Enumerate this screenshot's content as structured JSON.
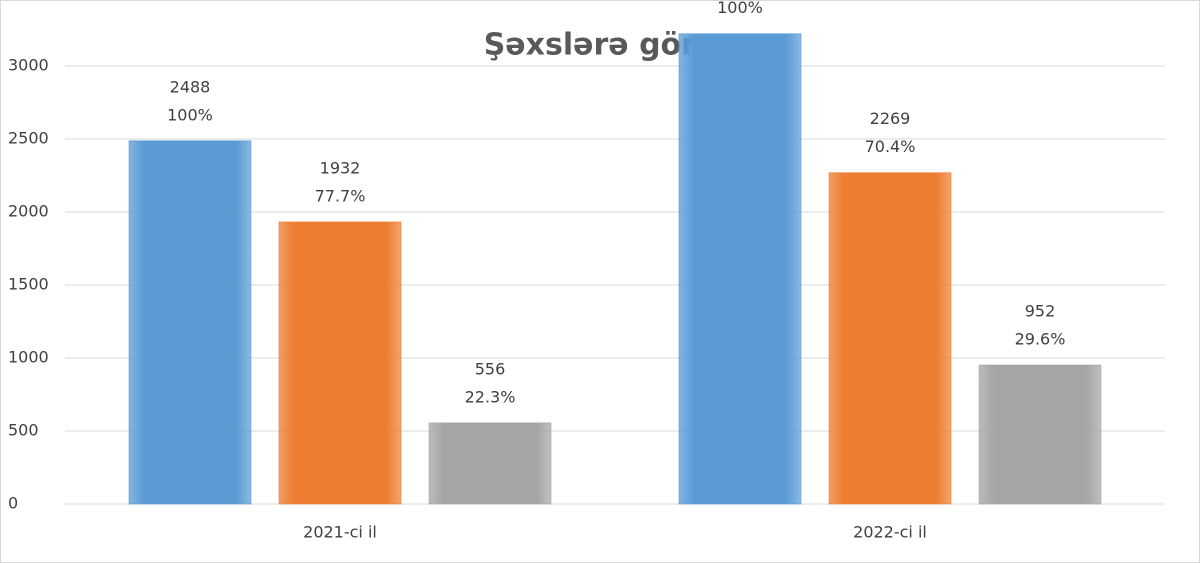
{
  "chart_data": {
    "type": "bar",
    "title": "Şəxslərə görə",
    "categories": [
      "2021-ci il",
      "2022-ci il"
    ],
    "series": [
      {
        "color": "#5b9bd5",
        "values": [
          2488,
          3221
        ],
        "percent_labels": [
          "100%",
          "100%"
        ]
      },
      {
        "color": "#ed7d31",
        "values": [
          1932,
          2269
        ],
        "percent_labels": [
          "77.7%",
          "70.4%"
        ]
      },
      {
        "color": "#a5a5a5",
        "values": [
          556,
          952
        ],
        "percent_labels": [
          "22.3%",
          "29.6%"
        ]
      }
    ],
    "ylim": [
      0,
      3000
    ],
    "yticks": [
      0,
      500,
      1000,
      1500,
      2000,
      2500,
      3000
    ],
    "grid": true
  }
}
